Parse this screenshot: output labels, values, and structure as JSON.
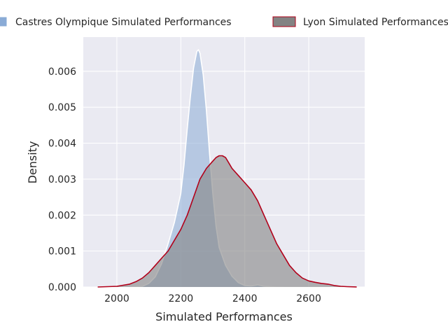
{
  "chart_data": {
    "type": "area",
    "xlabel": "Simulated Performances",
    "ylabel": "Density",
    "xlim": [
      1895,
      2775
    ],
    "ylim": [
      0,
      0.00695
    ],
    "x_ticks": [
      2000,
      2200,
      2400,
      2600
    ],
    "x_tick_labels": [
      "2000",
      "2200",
      "2400",
      "2600"
    ],
    "y_ticks": [
      0,
      0.001,
      0.002,
      0.003,
      0.004,
      0.005,
      0.006
    ],
    "y_tick_labels": [
      "0.000",
      "0.001",
      "0.002",
      "0.003",
      "0.004",
      "0.005",
      "0.006"
    ],
    "grid": true,
    "legend_position": "top, above plot",
    "background_color": "#eaeaf2",
    "series": [
      {
        "name": "Castres Olympique Simulated Performances",
        "fill_color": "#8aabd6",
        "line_color": "#ffffff",
        "x": [
          2040,
          2080,
          2100,
          2120,
          2140,
          2160,
          2180,
          2200,
          2210,
          2220,
          2230,
          2240,
          2250,
          2255,
          2260,
          2270,
          2280,
          2290,
          2300,
          2310,
          2320,
          2340,
          2360,
          2380,
          2400,
          2420,
          2440,
          2460,
          2480,
          2500,
          2520
        ],
        "y": [
          0.0,
          2e-05,
          0.0001,
          0.00028,
          0.00065,
          0.0012,
          0.0018,
          0.0026,
          0.0034,
          0.0044,
          0.0053,
          0.0061,
          0.00655,
          0.0066,
          0.0065,
          0.0059,
          0.0049,
          0.0037,
          0.0026,
          0.0017,
          0.0011,
          0.0006,
          0.0003,
          0.00012,
          4e-05,
          3e-05,
          6e-05,
          2e-05,
          1e-05,
          0.0,
          0.0
        ]
      },
      {
        "name": "Lyon Simulated Performances",
        "fill_color": "#838383",
        "line_color": "#b2001a",
        "x": [
          1940,
          2000,
          2040,
          2060,
          2080,
          2100,
          2120,
          2140,
          2160,
          2180,
          2200,
          2220,
          2240,
          2260,
          2280,
          2300,
          2310,
          2320,
          2330,
          2340,
          2350,
          2360,
          2380,
          2400,
          2420,
          2440,
          2460,
          2480,
          2500,
          2520,
          2540,
          2560,
          2580,
          2600,
          2620,
          2640,
          2660,
          2680,
          2700,
          2720,
          2750
        ],
        "y": [
          0.0,
          2e-05,
          8e-05,
          0.00015,
          0.00025,
          0.0004,
          0.0006,
          0.0008,
          0.001,
          0.0013,
          0.0016,
          0.002,
          0.0025,
          0.003,
          0.0033,
          0.0035,
          0.0036,
          0.00365,
          0.00365,
          0.0036,
          0.00345,
          0.0033,
          0.0031,
          0.0029,
          0.0027,
          0.0024,
          0.002,
          0.0016,
          0.0012,
          0.0009,
          0.0006,
          0.0004,
          0.00025,
          0.00017,
          0.00013,
          0.0001,
          8e-05,
          4e-05,
          2e-05,
          1e-05,
          0.0
        ]
      }
    ]
  }
}
